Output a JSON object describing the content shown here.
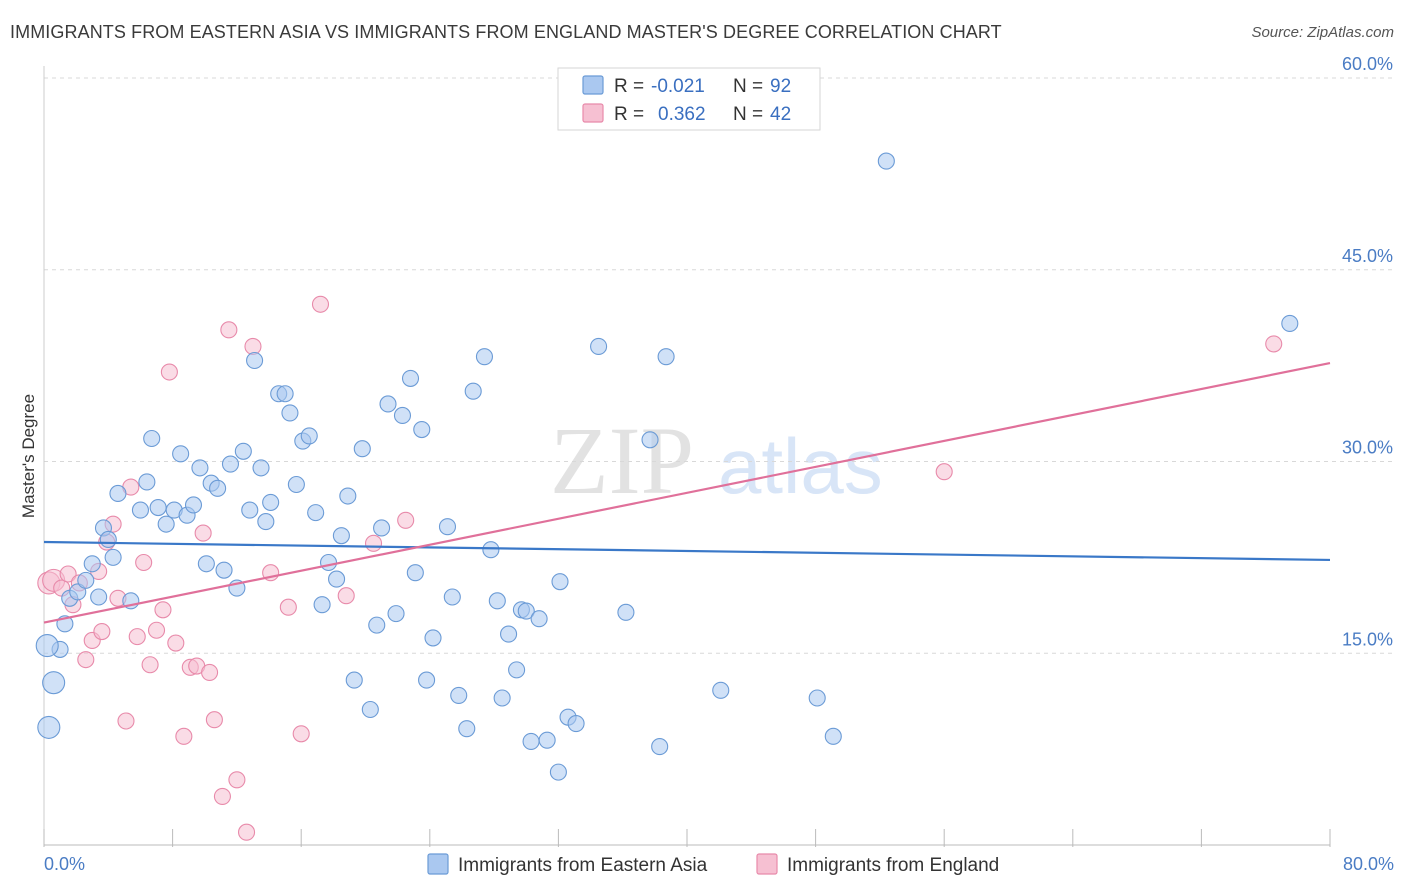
{
  "title": "IMMIGRANTS FROM EASTERN ASIA VS IMMIGRANTS FROM ENGLAND MASTER'S DEGREE CORRELATION CHART",
  "source": "Source: ZipAtlas.com",
  "watermark": {
    "zip": "ZIP",
    "atlas": "atlas"
  },
  "legend": {
    "rows": [
      {
        "r_label": "R =",
        "r_value": "-0.021",
        "n_label": "N =",
        "n_value": "92"
      },
      {
        "r_label": "R =",
        "r_value": "0.362",
        "n_label": "N =",
        "n_value": "42"
      }
    ]
  },
  "bottom_legend": [
    "Immigrants from Eastern Asia",
    "Immigrants from England"
  ],
  "colors": {
    "blue_fill": "#aac8f0",
    "blue_stroke": "#6b9bd6",
    "blue_line": "#3a78c8",
    "pink_fill": "#f6c0d2",
    "pink_stroke": "#e88aaa",
    "pink_line": "#e0709a",
    "grid": "#d8d8d8",
    "axis_label": "#4a7cc4"
  },
  "chart_data": {
    "type": "scatter",
    "title": "IMMIGRANTS FROM EASTERN ASIA VS IMMIGRANTS FROM ENGLAND MASTER'S DEGREE CORRELATION CHART",
    "xlabel": "",
    "ylabel": "Master's Degree",
    "xlim": [
      0,
      80
    ],
    "ylim": [
      0,
      60
    ],
    "x_tick_labels": [
      "0.0%",
      "80.0%"
    ],
    "y_ticks": [
      15,
      30,
      45,
      60
    ],
    "y_tick_labels": [
      "15.0%",
      "30.0%",
      "45.0%",
      "60.0%"
    ],
    "grid": true,
    "legend_placement": "top-center",
    "series": [
      {
        "name": "Immigrants from Eastern Asia",
        "color": "#aac8f0",
        "trend": {
          "x": [
            0,
            80
          ],
          "y": [
            23.7,
            22.3
          ]
        },
        "points": [
          [
            0.3,
            9.2
          ],
          [
            0.6,
            12.7
          ],
          [
            1.0,
            15.3
          ],
          [
            1.3,
            17.3
          ],
          [
            1.6,
            19.3
          ],
          [
            2.1,
            19.8
          ],
          [
            2.6,
            20.7
          ],
          [
            3.0,
            22.0
          ],
          [
            3.4,
            19.4
          ],
          [
            3.7,
            24.8
          ],
          [
            4.0,
            23.9
          ],
          [
            4.3,
            22.5
          ],
          [
            4.6,
            27.5
          ],
          [
            5.4,
            19.1
          ],
          [
            6.0,
            26.2
          ],
          [
            6.4,
            28.4
          ],
          [
            6.7,
            31.8
          ],
          [
            7.1,
            26.4
          ],
          [
            7.6,
            25.1
          ],
          [
            8.1,
            26.2
          ],
          [
            8.5,
            30.6
          ],
          [
            8.9,
            25.8
          ],
          [
            9.3,
            26.6
          ],
          [
            9.7,
            29.5
          ],
          [
            10.1,
            22.0
          ],
          [
            10.4,
            28.3
          ],
          [
            10.8,
            27.9
          ],
          [
            11.2,
            21.5
          ],
          [
            11.6,
            29.8
          ],
          [
            12.0,
            20.1
          ],
          [
            12.4,
            30.8
          ],
          [
            12.8,
            26.2
          ],
          [
            13.1,
            37.9
          ],
          [
            13.5,
            29.5
          ],
          [
            13.8,
            25.3
          ],
          [
            14.1,
            26.8
          ],
          [
            14.6,
            35.3
          ],
          [
            15.0,
            35.3
          ],
          [
            15.3,
            33.8
          ],
          [
            15.7,
            28.2
          ],
          [
            16.1,
            31.6
          ],
          [
            16.5,
            32.0
          ],
          [
            16.9,
            26.0
          ],
          [
            17.3,
            18.8
          ],
          [
            17.7,
            22.1
          ],
          [
            18.2,
            20.8
          ],
          [
            18.5,
            24.2
          ],
          [
            18.9,
            27.3
          ],
          [
            19.3,
            12.9
          ],
          [
            19.8,
            31.0
          ],
          [
            20.3,
            10.6
          ],
          [
            20.7,
            17.2
          ],
          [
            21.0,
            24.8
          ],
          [
            21.4,
            34.5
          ],
          [
            21.9,
            18.1
          ],
          [
            22.3,
            33.6
          ],
          [
            22.8,
            36.5
          ],
          [
            23.1,
            21.3
          ],
          [
            23.5,
            32.5
          ],
          [
            23.8,
            12.9
          ],
          [
            24.2,
            16.2
          ],
          [
            25.1,
            24.9
          ],
          [
            25.4,
            19.4
          ],
          [
            25.8,
            11.7
          ],
          [
            26.3,
            9.1
          ],
          [
            26.7,
            35.5
          ],
          [
            27.4,
            38.2
          ],
          [
            27.8,
            23.1
          ],
          [
            28.2,
            19.1
          ],
          [
            28.5,
            11.5
          ],
          [
            28.9,
            16.5
          ],
          [
            29.4,
            13.7
          ],
          [
            29.7,
            18.4
          ],
          [
            30.0,
            18.3
          ],
          [
            30.3,
            8.1
          ],
          [
            30.8,
            17.7
          ],
          [
            31.3,
            8.2
          ],
          [
            32.1,
            20.6
          ],
          [
            32.6,
            10.0
          ],
          [
            33.1,
            9.5
          ],
          [
            34.5,
            39.0
          ],
          [
            36.2,
            18.2
          ],
          [
            37.7,
            31.7
          ],
          [
            38.3,
            7.7
          ],
          [
            38.7,
            38.2
          ],
          [
            42.1,
            12.1
          ],
          [
            48.1,
            11.5
          ],
          [
            49.1,
            8.5
          ],
          [
            52.4,
            53.5
          ],
          [
            77.5,
            40.8
          ],
          [
            32.0,
            5.7
          ],
          [
            0.2,
            15.6
          ]
        ]
      },
      {
        "name": "Immigrants from England",
        "color": "#f6c0d2",
        "trend": {
          "x": [
            0,
            80
          ],
          "y": [
            17.4,
            37.7
          ]
        },
        "points": [
          [
            0.3,
            20.5
          ],
          [
            0.6,
            20.7
          ],
          [
            1.1,
            20.1
          ],
          [
            1.5,
            21.2
          ],
          [
            1.8,
            18.8
          ],
          [
            2.2,
            20.5
          ],
          [
            2.6,
            14.5
          ],
          [
            3.0,
            16.0
          ],
          [
            3.4,
            21.4
          ],
          [
            3.9,
            23.7
          ],
          [
            4.3,
            25.1
          ],
          [
            4.6,
            19.3
          ],
          [
            5.1,
            9.7
          ],
          [
            5.4,
            28.0
          ],
          [
            5.8,
            16.3
          ],
          [
            6.2,
            22.1
          ],
          [
            6.6,
            14.1
          ],
          [
            7.0,
            16.8
          ],
          [
            7.4,
            18.4
          ],
          [
            7.8,
            37.0
          ],
          [
            8.2,
            15.8
          ],
          [
            8.7,
            8.5
          ],
          [
            9.1,
            13.9
          ],
          [
            9.5,
            14.0
          ],
          [
            9.9,
            24.4
          ],
          [
            10.3,
            13.5
          ],
          [
            10.6,
            9.8
          ],
          [
            11.1,
            3.8
          ],
          [
            11.5,
            40.3
          ],
          [
            12.0,
            5.1
          ],
          [
            12.6,
            1.0
          ],
          [
            13.0,
            39.0
          ],
          [
            14.1,
            21.3
          ],
          [
            15.2,
            18.6
          ],
          [
            16.0,
            8.7
          ],
          [
            17.2,
            42.3
          ],
          [
            18.8,
            19.5
          ],
          [
            20.5,
            23.6
          ],
          [
            22.5,
            25.4
          ],
          [
            56.0,
            29.2
          ],
          [
            76.5,
            39.2
          ],
          [
            3.6,
            16.7
          ]
        ]
      }
    ]
  }
}
